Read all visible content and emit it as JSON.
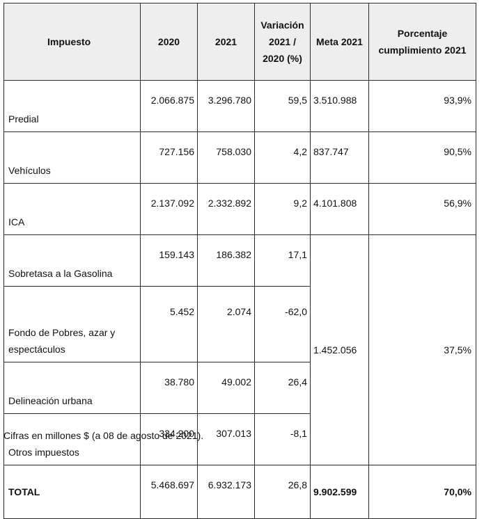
{
  "headers": [
    "Impuesto",
    "2020",
    "2021",
    "Variación 2021 / 2020 (%)",
    "Meta 2021",
    "Porcentaje cumplimiento 2021"
  ],
  "rows": [
    {
      "name": "Predial",
      "y2020": "2.066.875",
      "y2021": "3.296.780",
      "var": "59,5",
      "meta": "3.510.988",
      "pct": "93,9%"
    },
    {
      "name": "Vehículos",
      "y2020": "727.156",
      "y2021": "758.030",
      "var": "4,2",
      "meta": "837.747",
      "pct": "90,5%"
    },
    {
      "name": "ICA",
      "y2020": "2.137.092",
      "y2021": "2.332.892",
      "var": "9,2",
      "meta": "4.101.808",
      "pct": "56,9%"
    },
    {
      "name": "Sobretasa a la Gasolina",
      "y2020": "159.143",
      "y2021": "186.382",
      "var": "17,1"
    },
    {
      "name": "Fondo de Pobres, azar y espectáculos",
      "y2020": "5.452",
      "y2021": "2.074",
      "var": "-62,0"
    },
    {
      "name": "Delineación urbana",
      "y2020": "38.780",
      "y2021": "49.002",
      "var": "26,4"
    },
    {
      "name": "Otros impuestos",
      "y2020": "334.200",
      "y2021": "307.013",
      "var": "-8,1"
    }
  ],
  "group": {
    "meta": "1.452.056",
    "pct": "37,5%"
  },
  "total": {
    "name": "TOTAL",
    "y2020": "5.468.697",
    "y2021": "6.932.173",
    "var": "26,8",
    "meta": "9.902.599",
    "pct": "70,0%"
  },
  "note": "Cifras en millones $ (a 08 de agosto de 2021)."
}
